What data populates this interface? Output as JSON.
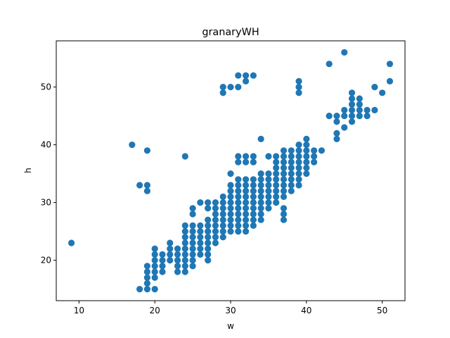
{
  "chart_data": {
    "type": "scatter",
    "title": "granaryWH",
    "xlabel": "w",
    "ylabel": "h",
    "xlim": [
      7,
      53
    ],
    "ylim": [
      13,
      58
    ],
    "xticks": [
      10,
      20,
      30,
      40,
      50
    ],
    "yticks": [
      20,
      30,
      40,
      50
    ],
    "grid": false,
    "marker_color": "#1f77b4",
    "points": [
      [
        9,
        23
      ],
      [
        17,
        40
      ],
      [
        18,
        33
      ],
      [
        19,
        33
      ],
      [
        19,
        32
      ],
      [
        19,
        39
      ],
      [
        24,
        38
      ],
      [
        18,
        15
      ],
      [
        19,
        15
      ],
      [
        20,
        15
      ],
      [
        19,
        16
      ],
      [
        19,
        17
      ],
      [
        19,
        18
      ],
      [
        19,
        19
      ],
      [
        20,
        17
      ],
      [
        20,
        18
      ],
      [
        20,
        19
      ],
      [
        20,
        20
      ],
      [
        20,
        21
      ],
      [
        20,
        22
      ],
      [
        21,
        18
      ],
      [
        21,
        19
      ],
      [
        21,
        20
      ],
      [
        21,
        21
      ],
      [
        22,
        20
      ],
      [
        22,
        21
      ],
      [
        22,
        22
      ],
      [
        22,
        23
      ],
      [
        23,
        18
      ],
      [
        23,
        19
      ],
      [
        23,
        20
      ],
      [
        23,
        21
      ],
      [
        23,
        22
      ],
      [
        24,
        18
      ],
      [
        24,
        19
      ],
      [
        24,
        20
      ],
      [
        24,
        21
      ],
      [
        24,
        22
      ],
      [
        24,
        23
      ],
      [
        24,
        24
      ],
      [
        24,
        25
      ],
      [
        24,
        26
      ],
      [
        25,
        19
      ],
      [
        25,
        20
      ],
      [
        25,
        21
      ],
      [
        25,
        22
      ],
      [
        25,
        23
      ],
      [
        25,
        24
      ],
      [
        25,
        25
      ],
      [
        25,
        26
      ],
      [
        25,
        28
      ],
      [
        25,
        29
      ],
      [
        26,
        21
      ],
      [
        26,
        22
      ],
      [
        26,
        23
      ],
      [
        26,
        24
      ],
      [
        26,
        25
      ],
      [
        26,
        26
      ],
      [
        26,
        30
      ],
      [
        27,
        20
      ],
      [
        27,
        21
      ],
      [
        27,
        22
      ],
      [
        27,
        23
      ],
      [
        27,
        24
      ],
      [
        27,
        25
      ],
      [
        27,
        26
      ],
      [
        27,
        27
      ],
      [
        27,
        29
      ],
      [
        27,
        30
      ],
      [
        28,
        23
      ],
      [
        28,
        24
      ],
      [
        28,
        25
      ],
      [
        28,
        26
      ],
      [
        28,
        27
      ],
      [
        28,
        28
      ],
      [
        28,
        29
      ],
      [
        28,
        30
      ],
      [
        29,
        24
      ],
      [
        29,
        25
      ],
      [
        29,
        26
      ],
      [
        29,
        27
      ],
      [
        29,
        28
      ],
      [
        29,
        29
      ],
      [
        29,
        30
      ],
      [
        29,
        31
      ],
      [
        29,
        49
      ],
      [
        29,
        50
      ],
      [
        30,
        25
      ],
      [
        30,
        26
      ],
      [
        30,
        27
      ],
      [
        30,
        28
      ],
      [
        30,
        29
      ],
      [
        30,
        30
      ],
      [
        30,
        31
      ],
      [
        30,
        32
      ],
      [
        30,
        33
      ],
      [
        30,
        35
      ],
      [
        30,
        50
      ],
      [
        31,
        25
      ],
      [
        31,
        26
      ],
      [
        31,
        27
      ],
      [
        31,
        28
      ],
      [
        31,
        29
      ],
      [
        31,
        30
      ],
      [
        31,
        31
      ],
      [
        31,
        32
      ],
      [
        31,
        33
      ],
      [
        31,
        34
      ],
      [
        31,
        37
      ],
      [
        31,
        38
      ],
      [
        31,
        50
      ],
      [
        31,
        52
      ],
      [
        32,
        25
      ],
      [
        32,
        26
      ],
      [
        32,
        27
      ],
      [
        32,
        28
      ],
      [
        32,
        29
      ],
      [
        32,
        30
      ],
      [
        32,
        31
      ],
      [
        32,
        32
      ],
      [
        32,
        33
      ],
      [
        32,
        34
      ],
      [
        32,
        37
      ],
      [
        32,
        38
      ],
      [
        32,
        51
      ],
      [
        32,
        52
      ],
      [
        33,
        26
      ],
      [
        33,
        27
      ],
      [
        33,
        28
      ],
      [
        33,
        29
      ],
      [
        33,
        30
      ],
      [
        33,
        31
      ],
      [
        33,
        32
      ],
      [
        33,
        33
      ],
      [
        33,
        34
      ],
      [
        33,
        37
      ],
      [
        33,
        38
      ],
      [
        33,
        52
      ],
      [
        34,
        27
      ],
      [
        34,
        28
      ],
      [
        34,
        29
      ],
      [
        34,
        30
      ],
      [
        34,
        31
      ],
      [
        34,
        32
      ],
      [
        34,
        33
      ],
      [
        34,
        34
      ],
      [
        34,
        35
      ],
      [
        34,
        41
      ],
      [
        35,
        29
      ],
      [
        35,
        30
      ],
      [
        35,
        31
      ],
      [
        35,
        32
      ],
      [
        35,
        33
      ],
      [
        35,
        34
      ],
      [
        35,
        35
      ],
      [
        35,
        38
      ],
      [
        36,
        30
      ],
      [
        36,
        31
      ],
      [
        36,
        32
      ],
      [
        36,
        33
      ],
      [
        36,
        34
      ],
      [
        36,
        35
      ],
      [
        36,
        36
      ],
      [
        36,
        37
      ],
      [
        36,
        38
      ],
      [
        37,
        27
      ],
      [
        37,
        28
      ],
      [
        37,
        29
      ],
      [
        37,
        31
      ],
      [
        37,
        32
      ],
      [
        37,
        33
      ],
      [
        37,
        34
      ],
      [
        37,
        35
      ],
      [
        37,
        36
      ],
      [
        37,
        37
      ],
      [
        37,
        38
      ],
      [
        37,
        39
      ],
      [
        38,
        32
      ],
      [
        38,
        33
      ],
      [
        38,
        34
      ],
      [
        38,
        35
      ],
      [
        38,
        36
      ],
      [
        38,
        37
      ],
      [
        38,
        38
      ],
      [
        38,
        39
      ],
      [
        39,
        33
      ],
      [
        39,
        34
      ],
      [
        39,
        35
      ],
      [
        39,
        36
      ],
      [
        39,
        37
      ],
      [
        39,
        38
      ],
      [
        39,
        39
      ],
      [
        39,
        40
      ],
      [
        39,
        49
      ],
      [
        39,
        50
      ],
      [
        39,
        51
      ],
      [
        40,
        35
      ],
      [
        40,
        36
      ],
      [
        40,
        37
      ],
      [
        40,
        38
      ],
      [
        40,
        39
      ],
      [
        40,
        40
      ],
      [
        40,
        41
      ],
      [
        41,
        37
      ],
      [
        41,
        38
      ],
      [
        41,
        39
      ],
      [
        42,
        39
      ],
      [
        43,
        45
      ],
      [
        43,
        54
      ],
      [
        44,
        41
      ],
      [
        44,
        42
      ],
      [
        44,
        44
      ],
      [
        44,
        45
      ],
      [
        45,
        43
      ],
      [
        45,
        45
      ],
      [
        45,
        46
      ],
      [
        45,
        56
      ],
      [
        46,
        44
      ],
      [
        46,
        45
      ],
      [
        46,
        46
      ],
      [
        46,
        47
      ],
      [
        46,
        48
      ],
      [
        46,
        49
      ],
      [
        47,
        45
      ],
      [
        47,
        46
      ],
      [
        47,
        47
      ],
      [
        47,
        48
      ],
      [
        48,
        45
      ],
      [
        48,
        46
      ],
      [
        49,
        46
      ],
      [
        49,
        50
      ],
      [
        50,
        49
      ],
      [
        51,
        51
      ],
      [
        51,
        54
      ]
    ]
  }
}
